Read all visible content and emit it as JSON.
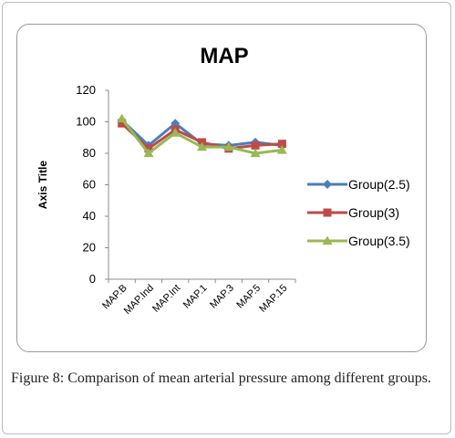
{
  "caption": {
    "label": "Figure 8:",
    "text": "Comparison of mean arterial pressure among different groups."
  },
  "chart_data": {
    "type": "line",
    "title": "MAP",
    "xlabel": "",
    "ylabel": "Axis Title",
    "categories": [
      "MAP.B",
      "MAP.Ind",
      "MAP.Int",
      "MAP.1",
      "MAP.3",
      "MAP.5",
      "MAP.15"
    ],
    "ylim": [
      0,
      120
    ],
    "yticks": [
      0,
      20,
      40,
      60,
      80,
      100,
      120
    ],
    "grid": false,
    "legend_position": "right",
    "series": [
      {
        "name": "Group(2.5)",
        "color": "#4a7ebb",
        "marker": "diamond",
        "values": [
          101,
          85,
          99,
          86,
          85,
          87,
          85
        ]
      },
      {
        "name": "Group(3)",
        "color": "#be4b48",
        "marker": "square",
        "values": [
          99,
          83,
          95,
          87,
          83,
          85,
          86
        ]
      },
      {
        "name": "Group(3.5)",
        "color": "#98b954",
        "marker": "triangle",
        "values": [
          102,
          80,
          93,
          84,
          84,
          80,
          82
        ]
      }
    ]
  }
}
